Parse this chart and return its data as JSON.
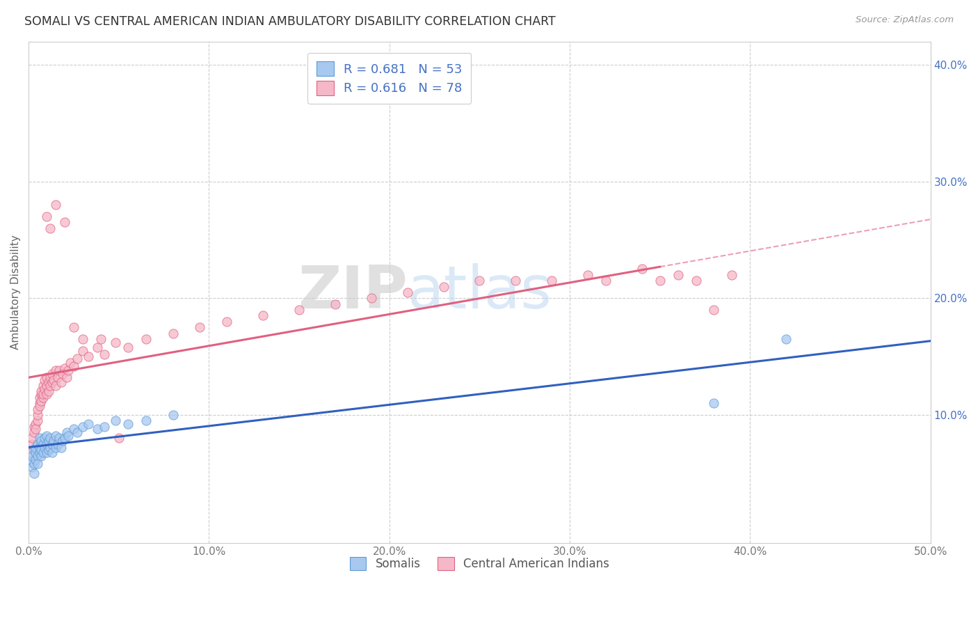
{
  "title": "SOMALI VS CENTRAL AMERICAN INDIAN AMBULATORY DISABILITY CORRELATION CHART",
  "source": "Source: ZipAtlas.com",
  "ylabel": "Ambulatory Disability",
  "xlim": [
    0.0,
    0.5
  ],
  "ylim": [
    -0.01,
    0.42
  ],
  "somali_color": "#A8C8F0",
  "somali_edge": "#5B9BD5",
  "central_color": "#F5B8C8",
  "central_edge": "#E06080",
  "trend_somali_color": "#3060C0",
  "trend_central_color": "#E06080",
  "R_somali": 0.681,
  "N_somali": 53,
  "R_central": 0.616,
  "N_central": 78,
  "legend_label_somali": "Somalis",
  "legend_label_central": "Central American Indians",
  "watermark_zip": "ZIP",
  "watermark_atlas": "atlas",
  "background_color": "#FFFFFF",
  "grid_color": "#CCCCCC",
  "title_color": "#333333",
  "tick_color_right": "#4472C4",
  "somali_x": [
    0.001,
    0.002,
    0.002,
    0.003,
    0.003,
    0.003,
    0.004,
    0.004,
    0.004,
    0.005,
    0.005,
    0.005,
    0.006,
    0.006,
    0.006,
    0.007,
    0.007,
    0.007,
    0.008,
    0.008,
    0.009,
    0.009,
    0.01,
    0.01,
    0.01,
    0.011,
    0.011,
    0.012,
    0.012,
    0.013,
    0.013,
    0.014,
    0.015,
    0.015,
    0.016,
    0.017,
    0.018,
    0.019,
    0.02,
    0.021,
    0.022,
    0.025,
    0.027,
    0.03,
    0.033,
    0.038,
    0.042,
    0.048,
    0.055,
    0.065,
    0.08,
    0.38,
    0.42
  ],
  "somali_y": [
    0.06,
    0.055,
    0.065,
    0.058,
    0.07,
    0.05,
    0.062,
    0.068,
    0.072,
    0.065,
    0.075,
    0.058,
    0.068,
    0.072,
    0.08,
    0.065,
    0.07,
    0.078,
    0.068,
    0.075,
    0.072,
    0.08,
    0.068,
    0.075,
    0.082,
    0.07,
    0.078,
    0.072,
    0.08,
    0.075,
    0.068,
    0.078,
    0.072,
    0.082,
    0.075,
    0.08,
    0.072,
    0.078,
    0.08,
    0.085,
    0.082,
    0.088,
    0.085,
    0.09,
    0.092,
    0.088,
    0.09,
    0.095,
    0.092,
    0.095,
    0.1,
    0.11,
    0.165
  ],
  "central_x": [
    0.001,
    0.002,
    0.002,
    0.003,
    0.003,
    0.004,
    0.004,
    0.005,
    0.005,
    0.005,
    0.006,
    0.006,
    0.006,
    0.007,
    0.007,
    0.007,
    0.008,
    0.008,
    0.008,
    0.009,
    0.009,
    0.01,
    0.01,
    0.01,
    0.011,
    0.011,
    0.012,
    0.012,
    0.013,
    0.013,
    0.014,
    0.015,
    0.015,
    0.016,
    0.017,
    0.018,
    0.019,
    0.02,
    0.021,
    0.022,
    0.023,
    0.025,
    0.027,
    0.03,
    0.033,
    0.038,
    0.042,
    0.048,
    0.055,
    0.065,
    0.08,
    0.095,
    0.11,
    0.13,
    0.15,
    0.17,
    0.19,
    0.21,
    0.23,
    0.25,
    0.27,
    0.29,
    0.31,
    0.32,
    0.34,
    0.35,
    0.36,
    0.37,
    0.38,
    0.39,
    0.01,
    0.012,
    0.015,
    0.02,
    0.025,
    0.03,
    0.04,
    0.05
  ],
  "central_y": [
    0.068,
    0.075,
    0.08,
    0.09,
    0.085,
    0.092,
    0.088,
    0.095,
    0.1,
    0.105,
    0.11,
    0.115,
    0.108,
    0.118,
    0.112,
    0.12,
    0.115,
    0.125,
    0.118,
    0.122,
    0.13,
    0.118,
    0.125,
    0.132,
    0.12,
    0.128,
    0.125,
    0.132,
    0.128,
    0.135,
    0.13,
    0.125,
    0.138,
    0.132,
    0.138,
    0.128,
    0.135,
    0.14,
    0.132,
    0.138,
    0.145,
    0.142,
    0.148,
    0.155,
    0.15,
    0.158,
    0.152,
    0.162,
    0.158,
    0.165,
    0.17,
    0.175,
    0.18,
    0.185,
    0.19,
    0.195,
    0.2,
    0.205,
    0.21,
    0.215,
    0.215,
    0.215,
    0.22,
    0.215,
    0.225,
    0.215,
    0.22,
    0.215,
    0.19,
    0.22,
    0.27,
    0.26,
    0.28,
    0.265,
    0.175,
    0.165,
    0.165,
    0.08
  ],
  "central_trend_x_solid_end": 0.35,
  "central_trend_x_dash_end": 0.5
}
